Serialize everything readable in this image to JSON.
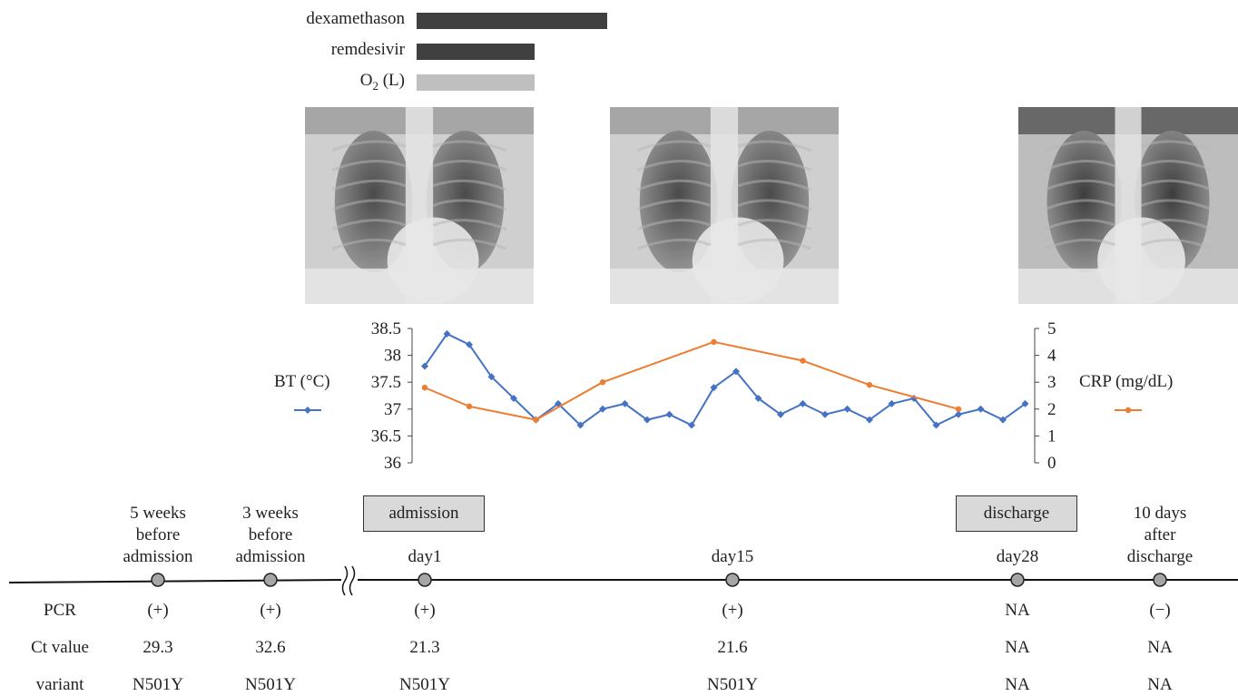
{
  "treatments": [
    {
      "label": "dexamethason",
      "start_day": 1,
      "end_day": 11,
      "color": "#404040"
    },
    {
      "label": "remdesivir",
      "start_day": 1,
      "end_day": 7,
      "color": "#404040"
    },
    {
      "label": "O",
      "label_sub": "2",
      "label_suffix": " (L)",
      "start_day": 1,
      "end_day": 7,
      "color": "#bfbfbf"
    }
  ],
  "xrays": [
    {
      "name": "chest-xray-admission",
      "day": 1
    },
    {
      "name": "chest-xray-day15",
      "day": 15
    },
    {
      "name": "chest-xray-discharge",
      "day": 28
    }
  ],
  "chart_data": {
    "type": "line",
    "x_unit": "day",
    "series": [
      {
        "name": "BT (°C)",
        "axis": "left",
        "color": "#4472c4",
        "marker": "diamond",
        "x": [
          1,
          2,
          3,
          4,
          5,
          6,
          7,
          8,
          9,
          10,
          11,
          12,
          13,
          14,
          15,
          16,
          17,
          18,
          19,
          20,
          21,
          22,
          23,
          24,
          25,
          26,
          27,
          28,
          29
        ],
        "y": [
          37.8,
          38.4,
          38.2,
          37.6,
          37.2,
          36.8,
          37.1,
          36.7,
          37.0,
          37.1,
          36.8,
          36.9,
          36.7,
          37.4,
          37.7,
          37.2,
          36.9,
          37.1,
          36.9,
          37.0,
          36.8,
          37.1,
          37.2,
          36.7,
          36.9,
          37.0,
          36.8,
          37.1,
          null
        ]
      },
      {
        "name": "CRP (mg/dL)",
        "axis": "right",
        "color": "#ed7d31",
        "marker": "circle",
        "x": [
          1,
          3,
          6,
          9,
          14,
          18,
          21,
          25
        ],
        "y": [
          2.8,
          2.1,
          1.6,
          3.0,
          4.5,
          3.8,
          2.9,
          2.0
        ]
      }
    ],
    "y_left": {
      "label": "BT (°C)",
      "range": [
        36,
        38.5
      ],
      "ticks": [
        "36",
        "36.5",
        "37",
        "37.5",
        "38",
        "38.5"
      ]
    },
    "y_right": {
      "label": "CRP (mg/dL)",
      "range": [
        0,
        5
      ],
      "ticks": [
        "0",
        "1",
        "2",
        "3",
        "4",
        "5"
      ]
    },
    "grid": false
  },
  "timeline": {
    "break_symbol": "≈",
    "points": [
      {
        "key": "w5",
        "label": [
          "5 weeks",
          "before",
          "admission"
        ],
        "pcr": "(+)",
        "ct": "29.3",
        "variant": "N501Y"
      },
      {
        "key": "w3",
        "label": [
          "3 weeks",
          "before",
          "admission"
        ],
        "pcr": "(+)",
        "ct": "32.6",
        "variant": "N501Y"
      },
      {
        "key": "d1",
        "label": [
          "day1"
        ],
        "box": "admission",
        "pcr": "(+)",
        "ct": "21.3",
        "variant": "N501Y"
      },
      {
        "key": "d15",
        "label": [
          "day15"
        ],
        "pcr": "(+)",
        "ct": "21.6",
        "variant": "N501Y"
      },
      {
        "key": "d28",
        "label": [
          "day28"
        ],
        "box": "discharge",
        "pcr": "NA",
        "ct": "NA",
        "variant": "NA"
      },
      {
        "key": "a10",
        "label": [
          "10 days",
          "after",
          "discharge"
        ],
        "pcr": "(−)",
        "ct": "NA",
        "variant": "NA"
      }
    ]
  },
  "table": {
    "row_headers": [
      "PCR",
      "Ct value",
      "variant"
    ]
  }
}
